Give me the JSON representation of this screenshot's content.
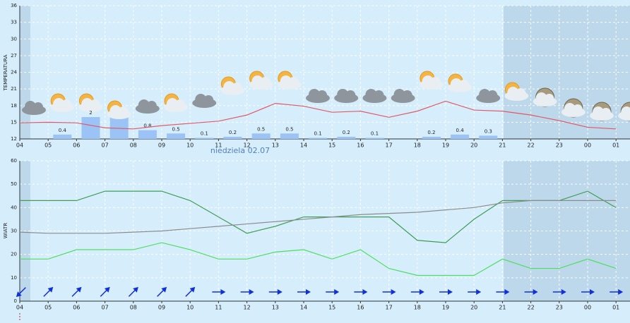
{
  "chart_data": [
    {
      "type": "line",
      "y_label": "TEMPERATURA",
      "annotation": "niedziela 02.07",
      "categories": [
        "04",
        "05",
        "06",
        "07",
        "08",
        "09",
        "10",
        "11",
        "12",
        "13",
        "14",
        "15",
        "16",
        "17",
        "18",
        "19",
        "20",
        "21",
        "22",
        "23",
        "00",
        "01"
      ],
      "ylim": [
        12,
        36
      ],
      "yticks": [
        12,
        15,
        18,
        21,
        24,
        27,
        30,
        33,
        36
      ],
      "grid": true,
      "series": [
        {
          "color": "#e05a66",
          "values": [
            14.9,
            15,
            14.9,
            14,
            13.8,
            14.4,
            14.8,
            15.2,
            16.3,
            18.4,
            17.9,
            16.8,
            17,
            15.9,
            17,
            18.8,
            17.2,
            17,
            16.3,
            15.3,
            14.1,
            13.8
          ]
        }
      ],
      "precipitation": {
        "color": "#9cc3f5",
        "values": [
          null,
          0.4,
          2,
          2,
          0.8,
          0.5,
          0.1,
          0.2,
          0.5,
          0.5,
          0.1,
          0.2,
          0.1,
          null,
          0.2,
          0.4,
          0.3,
          null,
          null,
          null,
          null,
          null
        ],
        "value_labels": [
          null,
          "0.4",
          "2",
          null,
          "0.8",
          "0.5",
          "0.1",
          "0.2",
          "0.5",
          "0.5",
          "0.1",
          "0.2",
          "0.1",
          null,
          "0.2",
          "0.4",
          "0.3",
          null,
          null,
          null,
          null,
          null
        ]
      }
    },
    {
      "type": "line",
      "y_label": "WIATR",
      "categories": [
        "04",
        "05",
        "06",
        "07",
        "08",
        "09",
        "10",
        "11",
        "12",
        "13",
        "14",
        "15",
        "16",
        "17",
        "18",
        "19",
        "20",
        "21",
        "22",
        "23",
        "00",
        "01"
      ],
      "ylim": [
        0,
        60
      ],
      "yticks": [
        0,
        10,
        20,
        30,
        40,
        50,
        60
      ],
      "grid": true,
      "series": [
        {
          "color": "#3f9e52",
          "values": [
            43,
            43,
            43,
            47,
            47,
            47,
            43,
            36,
            29,
            32,
            36,
            36,
            36,
            36,
            26,
            25,
            35,
            43,
            43,
            43,
            47,
            40
          ]
        },
        {
          "color": "#4ede5e",
          "values": [
            18,
            18,
            22,
            22,
            22,
            25,
            22,
            18,
            18,
            21,
            22,
            18,
            22,
            14,
            11,
            11,
            11,
            18,
            14,
            14,
            18,
            14
          ]
        },
        {
          "color": "#8c8c8c",
          "values": [
            29.5,
            29,
            29,
            29,
            29.5,
            30,
            31,
            32,
            33,
            34,
            35,
            36,
            37,
            37.5,
            38,
            39,
            40,
            42,
            43,
            43,
            43,
            43
          ]
        }
      ],
      "wind_direction": {
        "color": "#1030d8",
        "values": [
          225,
          45,
          45,
          45,
          45,
          45,
          45,
          90,
          90,
          90,
          90,
          90,
          90,
          90,
          90,
          90,
          90,
          90,
          90,
          90,
          90,
          90
        ]
      }
    }
  ]
}
